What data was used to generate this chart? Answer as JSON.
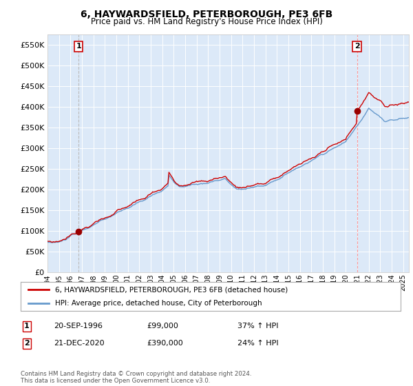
{
  "title": "6, HAYWARDSFIELD, PETERBOROUGH, PE3 6FB",
  "subtitle": "Price paid vs. HM Land Registry's House Price Index (HPI)",
  "sale1_date": "20-SEP-1996",
  "sale1_price": 99000,
  "sale1_hpi_pct": "37%",
  "sale1_year": 1996.72,
  "sale2_date": "21-DEC-2020",
  "sale2_price": 390000,
  "sale2_hpi_pct": "24%",
  "sale2_year": 2020.97,
  "ylabel_ticks": [
    "£0",
    "£50K",
    "£100K",
    "£150K",
    "£200K",
    "£250K",
    "£300K",
    "£350K",
    "£400K",
    "£450K",
    "£500K",
    "£550K"
  ],
  "ytick_values": [
    0,
    50000,
    100000,
    150000,
    200000,
    250000,
    300000,
    350000,
    400000,
    450000,
    500000,
    550000
  ],
  "legend_red": "6, HAYWARDSFIELD, PETERBOROUGH, PE3 6FB (detached house)",
  "legend_blue": "HPI: Average price, detached house, City of Peterborough",
  "copyright": "Contains HM Land Registry data © Crown copyright and database right 2024.\nThis data is licensed under the Open Government Licence v3.0.",
  "bg_color": "#dce9f8",
  "grid_color": "#ffffff",
  "red_line_color": "#cc0000",
  "blue_line_color": "#6699cc",
  "marker_color": "#990000",
  "xmin": 1994.0,
  "xmax": 2025.5,
  "ymin": 0,
  "ymax": 575000
}
